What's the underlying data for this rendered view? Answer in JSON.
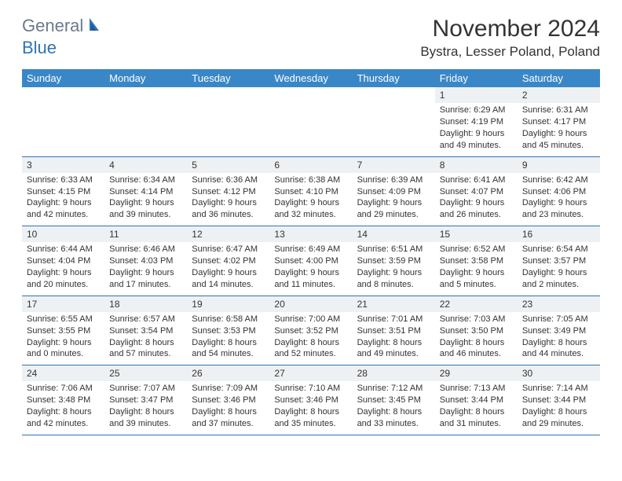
{
  "logo": {
    "part1": "General",
    "part2": "Blue"
  },
  "title": "November 2024",
  "location": "Bystra, Lesser Poland, Poland",
  "colors": {
    "header_bg": "#3a87c8",
    "header_text": "#ffffff",
    "daynum_bg": "#eef1f3",
    "row_border": "#2f73b8",
    "text": "#333333",
    "logo_gray": "#6b7a8f",
    "logo_blue": "#2f73b8",
    "page_bg": "#ffffff"
  },
  "typography": {
    "title_fontsize": 30,
    "location_fontsize": 17,
    "header_fontsize": 13,
    "cell_fontsize": 11,
    "daynum_fontsize": 12
  },
  "weekdays": [
    "Sunday",
    "Monday",
    "Tuesday",
    "Wednesday",
    "Thursday",
    "Friday",
    "Saturday"
  ],
  "weeks": [
    [
      {
        "empty": true
      },
      {
        "empty": true
      },
      {
        "empty": true
      },
      {
        "empty": true
      },
      {
        "empty": true
      },
      {
        "day": "1",
        "sunrise": "Sunrise: 6:29 AM",
        "sunset": "Sunset: 4:19 PM",
        "daylight": "Daylight: 9 hours and 49 minutes."
      },
      {
        "day": "2",
        "sunrise": "Sunrise: 6:31 AM",
        "sunset": "Sunset: 4:17 PM",
        "daylight": "Daylight: 9 hours and 45 minutes."
      }
    ],
    [
      {
        "day": "3",
        "sunrise": "Sunrise: 6:33 AM",
        "sunset": "Sunset: 4:15 PM",
        "daylight": "Daylight: 9 hours and 42 minutes."
      },
      {
        "day": "4",
        "sunrise": "Sunrise: 6:34 AM",
        "sunset": "Sunset: 4:14 PM",
        "daylight": "Daylight: 9 hours and 39 minutes."
      },
      {
        "day": "5",
        "sunrise": "Sunrise: 6:36 AM",
        "sunset": "Sunset: 4:12 PM",
        "daylight": "Daylight: 9 hours and 36 minutes."
      },
      {
        "day": "6",
        "sunrise": "Sunrise: 6:38 AM",
        "sunset": "Sunset: 4:10 PM",
        "daylight": "Daylight: 9 hours and 32 minutes."
      },
      {
        "day": "7",
        "sunrise": "Sunrise: 6:39 AM",
        "sunset": "Sunset: 4:09 PM",
        "daylight": "Daylight: 9 hours and 29 minutes."
      },
      {
        "day": "8",
        "sunrise": "Sunrise: 6:41 AM",
        "sunset": "Sunset: 4:07 PM",
        "daylight": "Daylight: 9 hours and 26 minutes."
      },
      {
        "day": "9",
        "sunrise": "Sunrise: 6:42 AM",
        "sunset": "Sunset: 4:06 PM",
        "daylight": "Daylight: 9 hours and 23 minutes."
      }
    ],
    [
      {
        "day": "10",
        "sunrise": "Sunrise: 6:44 AM",
        "sunset": "Sunset: 4:04 PM",
        "daylight": "Daylight: 9 hours and 20 minutes."
      },
      {
        "day": "11",
        "sunrise": "Sunrise: 6:46 AM",
        "sunset": "Sunset: 4:03 PM",
        "daylight": "Daylight: 9 hours and 17 minutes."
      },
      {
        "day": "12",
        "sunrise": "Sunrise: 6:47 AM",
        "sunset": "Sunset: 4:02 PM",
        "daylight": "Daylight: 9 hours and 14 minutes."
      },
      {
        "day": "13",
        "sunrise": "Sunrise: 6:49 AM",
        "sunset": "Sunset: 4:00 PM",
        "daylight": "Daylight: 9 hours and 11 minutes."
      },
      {
        "day": "14",
        "sunrise": "Sunrise: 6:51 AM",
        "sunset": "Sunset: 3:59 PM",
        "daylight": "Daylight: 9 hours and 8 minutes."
      },
      {
        "day": "15",
        "sunrise": "Sunrise: 6:52 AM",
        "sunset": "Sunset: 3:58 PM",
        "daylight": "Daylight: 9 hours and 5 minutes."
      },
      {
        "day": "16",
        "sunrise": "Sunrise: 6:54 AM",
        "sunset": "Sunset: 3:57 PM",
        "daylight": "Daylight: 9 hours and 2 minutes."
      }
    ],
    [
      {
        "day": "17",
        "sunrise": "Sunrise: 6:55 AM",
        "sunset": "Sunset: 3:55 PM",
        "daylight": "Daylight: 9 hours and 0 minutes."
      },
      {
        "day": "18",
        "sunrise": "Sunrise: 6:57 AM",
        "sunset": "Sunset: 3:54 PM",
        "daylight": "Daylight: 8 hours and 57 minutes."
      },
      {
        "day": "19",
        "sunrise": "Sunrise: 6:58 AM",
        "sunset": "Sunset: 3:53 PM",
        "daylight": "Daylight: 8 hours and 54 minutes."
      },
      {
        "day": "20",
        "sunrise": "Sunrise: 7:00 AM",
        "sunset": "Sunset: 3:52 PM",
        "daylight": "Daylight: 8 hours and 52 minutes."
      },
      {
        "day": "21",
        "sunrise": "Sunrise: 7:01 AM",
        "sunset": "Sunset: 3:51 PM",
        "daylight": "Daylight: 8 hours and 49 minutes."
      },
      {
        "day": "22",
        "sunrise": "Sunrise: 7:03 AM",
        "sunset": "Sunset: 3:50 PM",
        "daylight": "Daylight: 8 hours and 46 minutes."
      },
      {
        "day": "23",
        "sunrise": "Sunrise: 7:05 AM",
        "sunset": "Sunset: 3:49 PM",
        "daylight": "Daylight: 8 hours and 44 minutes."
      }
    ],
    [
      {
        "day": "24",
        "sunrise": "Sunrise: 7:06 AM",
        "sunset": "Sunset: 3:48 PM",
        "daylight": "Daylight: 8 hours and 42 minutes."
      },
      {
        "day": "25",
        "sunrise": "Sunrise: 7:07 AM",
        "sunset": "Sunset: 3:47 PM",
        "daylight": "Daylight: 8 hours and 39 minutes."
      },
      {
        "day": "26",
        "sunrise": "Sunrise: 7:09 AM",
        "sunset": "Sunset: 3:46 PM",
        "daylight": "Daylight: 8 hours and 37 minutes."
      },
      {
        "day": "27",
        "sunrise": "Sunrise: 7:10 AM",
        "sunset": "Sunset: 3:46 PM",
        "daylight": "Daylight: 8 hours and 35 minutes."
      },
      {
        "day": "28",
        "sunrise": "Sunrise: 7:12 AM",
        "sunset": "Sunset: 3:45 PM",
        "daylight": "Daylight: 8 hours and 33 minutes."
      },
      {
        "day": "29",
        "sunrise": "Sunrise: 7:13 AM",
        "sunset": "Sunset: 3:44 PM",
        "daylight": "Daylight: 8 hours and 31 minutes."
      },
      {
        "day": "30",
        "sunrise": "Sunrise: 7:14 AM",
        "sunset": "Sunset: 3:44 PM",
        "daylight": "Daylight: 8 hours and 29 minutes."
      }
    ]
  ]
}
